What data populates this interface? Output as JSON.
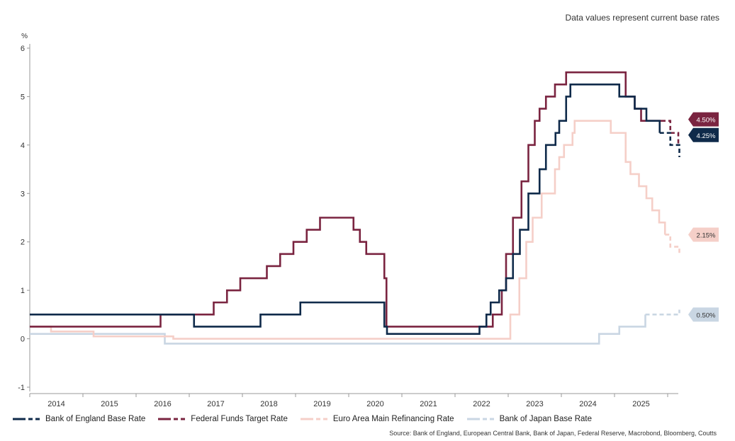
{
  "note": "Data values represent current base rates",
  "source": "Source: Bank of England, European Central Bank, Bank of Japan, Federal Reserve, Macrobond, Bloomberg, Coutts",
  "colors": {
    "boe": "#0f2a4a",
    "fed": "#7a2440",
    "ecb": "#f5cfc8",
    "boj": "#c9d6e3",
    "axis": "#666666"
  },
  "chart_data": {
    "type": "line",
    "ylabel": "%",
    "ylim": [
      -1,
      6
    ],
    "yticks": [
      -1,
      0,
      1,
      2,
      3,
      4,
      5,
      6
    ],
    "xlim": [
      2013.5,
      2025.7
    ],
    "xticks": [
      "2014",
      "2015",
      "2016",
      "2017",
      "2018",
      "2019",
      "2020",
      "2021",
      "2022",
      "2023",
      "2024",
      "2025"
    ],
    "grid": false,
    "legend_position": "bottom",
    "series": [
      {
        "name": "Bank of England Base Rate",
        "color_key": "boe",
        "end_label": "4.25%",
        "end_value": 4.25,
        "steps": [
          [
            2013.5,
            0.5
          ],
          [
            2016.59,
            0.25
          ],
          [
            2017.84,
            0.5
          ],
          [
            2018.59,
            0.75
          ],
          [
            2020.17,
            0.25
          ],
          [
            2020.22,
            0.1
          ],
          [
            2021.96,
            0.25
          ],
          [
            2022.09,
            0.5
          ],
          [
            2022.17,
            0.75
          ],
          [
            2022.33,
            1.0
          ],
          [
            2022.46,
            1.25
          ],
          [
            2022.59,
            1.75
          ],
          [
            2022.72,
            2.25
          ],
          [
            2022.88,
            3.0
          ],
          [
            2023.09,
            3.5
          ],
          [
            2023.21,
            4.0
          ],
          [
            2023.39,
            4.25
          ],
          [
            2023.46,
            4.5
          ],
          [
            2023.59,
            5.0
          ],
          [
            2023.67,
            5.25
          ],
          [
            2024.59,
            5.0
          ],
          [
            2024.88,
            4.75
          ],
          [
            2025.1,
            4.5
          ],
          [
            2025.35,
            4.25
          ]
        ],
        "forecast": [
          [
            2025.35,
            4.25
          ],
          [
            2025.55,
            4.0
          ],
          [
            2025.72,
            3.75
          ]
        ]
      },
      {
        "name": "Federal Funds Target Rate",
        "color_key": "fed",
        "end_label": "4.50%",
        "end_value": 4.5,
        "steps": [
          [
            2013.5,
            0.25
          ],
          [
            2015.96,
            0.5
          ],
          [
            2016.96,
            0.75
          ],
          [
            2017.21,
            1.0
          ],
          [
            2017.46,
            1.25
          ],
          [
            2017.96,
            1.5
          ],
          [
            2018.21,
            1.75
          ],
          [
            2018.46,
            2.0
          ],
          [
            2018.71,
            2.25
          ],
          [
            2018.96,
            2.5
          ],
          [
            2019.59,
            2.25
          ],
          [
            2019.71,
            2.0
          ],
          [
            2019.83,
            1.75
          ],
          [
            2020.17,
            1.25
          ],
          [
            2020.21,
            0.25
          ],
          [
            2022.21,
            0.5
          ],
          [
            2022.38,
            1.0
          ],
          [
            2022.46,
            1.75
          ],
          [
            2022.59,
            2.5
          ],
          [
            2022.75,
            3.25
          ],
          [
            2022.88,
            4.0
          ],
          [
            2023.0,
            4.5
          ],
          [
            2023.09,
            4.75
          ],
          [
            2023.21,
            5.0
          ],
          [
            2023.38,
            5.25
          ],
          [
            2023.59,
            5.5
          ],
          [
            2024.71,
            5.0
          ],
          [
            2024.88,
            4.75
          ],
          [
            2025.0,
            4.5
          ]
        ],
        "forecast": [
          [
            2025.38,
            4.5
          ],
          [
            2025.55,
            4.25
          ],
          [
            2025.7,
            4.0
          ]
        ]
      },
      {
        "name": "Euro Area Main Refinancing Rate",
        "color_key": "ecb",
        "end_label": "2.15%",
        "end_value": 2.15,
        "steps": [
          [
            2013.5,
            0.25
          ],
          [
            2013.9,
            0.15
          ],
          [
            2014.7,
            0.05
          ],
          [
            2016.2,
            0.0
          ],
          [
            2022.54,
            0.5
          ],
          [
            2022.71,
            1.25
          ],
          [
            2022.84,
            2.0
          ],
          [
            2022.96,
            2.5
          ],
          [
            2023.13,
            3.0
          ],
          [
            2023.38,
            3.5
          ],
          [
            2023.46,
            3.75
          ],
          [
            2023.55,
            4.0
          ],
          [
            2023.71,
            4.25
          ],
          [
            2023.75,
            4.5
          ],
          [
            2024.43,
            4.25
          ],
          [
            2024.71,
            3.65
          ],
          [
            2024.8,
            3.4
          ],
          [
            2024.96,
            3.15
          ],
          [
            2025.1,
            2.9
          ],
          [
            2025.21,
            2.65
          ],
          [
            2025.34,
            2.4
          ],
          [
            2025.45,
            2.15
          ]
        ],
        "forecast": [
          [
            2025.45,
            2.15
          ],
          [
            2025.55,
            1.9
          ],
          [
            2025.72,
            1.75
          ]
        ]
      },
      {
        "name": "Bank of Japan Base Rate",
        "color_key": "boj",
        "end_label": "0.50%",
        "end_value": 0.5,
        "steps": [
          [
            2013.5,
            0.1
          ],
          [
            2016.04,
            -0.1
          ],
          [
            2024.21,
            0.1
          ],
          [
            2024.59,
            0.25
          ],
          [
            2025.08,
            0.5
          ]
        ],
        "forecast": [
          [
            2025.08,
            0.5
          ],
          [
            2025.6,
            0.5
          ],
          [
            2025.72,
            0.6
          ]
        ]
      }
    ]
  }
}
